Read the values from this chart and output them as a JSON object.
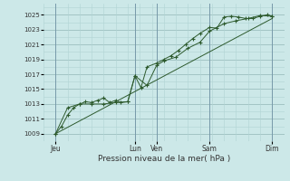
{
  "bg_color": "#cce8e8",
  "grid_minor_color": "#b0d4d4",
  "grid_major_color": "#99bbbb",
  "line_color": "#2d5a2d",
  "xlabel": "Pression niveau de la mer( hPa )",
  "ytick_labels": [
    "1009",
    "1011",
    "1013",
    "1015",
    "1017",
    "1019",
    "1021",
    "1023",
    "1025"
  ],
  "ytick_vals": [
    1009,
    1011,
    1013,
    1015,
    1017,
    1019,
    1021,
    1023,
    1025
  ],
  "ylim": [
    1008.0,
    1026.5
  ],
  "xlim": [
    0.0,
    10.0
  ],
  "day_labels": [
    "Jeu",
    "Lun",
    "Ven",
    "Sam",
    "Dim"
  ],
  "day_x": [
    0.5,
    3.8,
    4.7,
    6.9,
    9.5
  ],
  "day_vlines": [
    0.5,
    3.8,
    4.7,
    6.9,
    9.5
  ],
  "series1_x": [
    0.5,
    0.75,
    1.0,
    1.25,
    1.5,
    1.75,
    2.0,
    2.25,
    2.5,
    2.75,
    3.0,
    3.2,
    3.5,
    3.8,
    4.05,
    4.3,
    4.7,
    5.0,
    5.3,
    5.6,
    5.9,
    6.2,
    6.5,
    6.9,
    7.2,
    7.5,
    7.8,
    8.1,
    8.4,
    8.7,
    9.0,
    9.3,
    9.5
  ],
  "series1_y": [
    1009.0,
    1010.0,
    1011.5,
    1012.5,
    1013.0,
    1013.3,
    1013.2,
    1013.5,
    1013.8,
    1013.2,
    1013.5,
    1013.2,
    1013.3,
    1016.8,
    1015.2,
    1018.0,
    1018.5,
    1019.0,
    1019.5,
    1020.2,
    1021.0,
    1021.8,
    1022.5,
    1023.3,
    1023.2,
    1024.7,
    1024.8,
    1024.7,
    1024.5,
    1024.5,
    1024.8,
    1025.0,
    1024.8
  ],
  "series2_x": [
    0.5,
    1.0,
    1.5,
    2.0,
    2.5,
    3.0,
    3.5,
    3.8,
    4.3,
    4.7,
    5.0,
    5.5,
    6.0,
    6.5,
    6.9,
    7.5,
    8.0,
    8.5,
    9.0,
    9.5
  ],
  "series2_y": [
    1009.0,
    1012.5,
    1013.0,
    1013.0,
    1013.0,
    1013.2,
    1013.3,
    1016.8,
    1015.5,
    1018.2,
    1018.8,
    1019.3,
    1020.5,
    1021.3,
    1022.8,
    1023.8,
    1024.2,
    1024.5,
    1024.9,
    1024.8
  ],
  "series3_x": [
    0.5,
    9.5
  ],
  "series3_y": [
    1009.0,
    1024.5
  ]
}
